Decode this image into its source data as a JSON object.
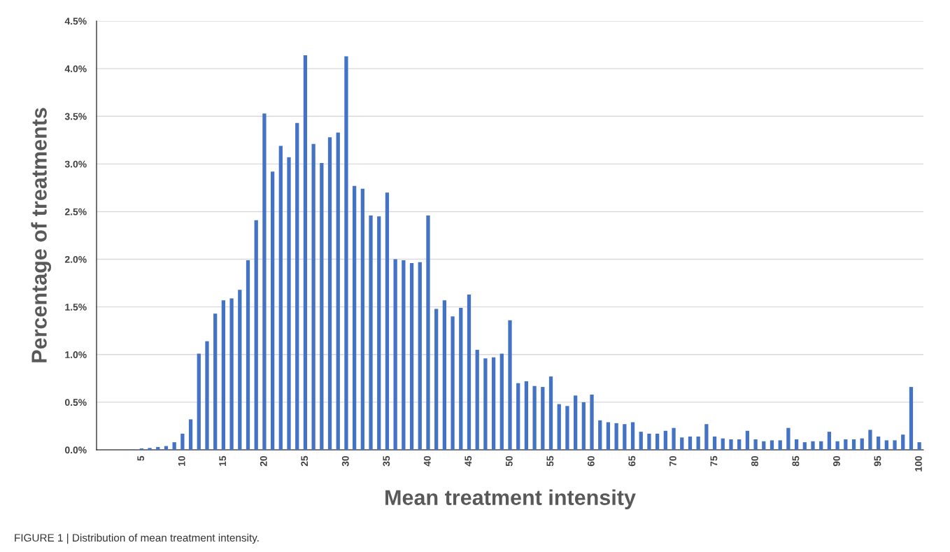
{
  "chart_data": {
    "type": "bar",
    "xlabel": "Mean treatment intensity",
    "ylabel": "Percentage of treatments",
    "categories": [
      null,
      null,
      null,
      null,
      null,
      "5",
      null,
      null,
      null,
      null,
      "10",
      null,
      null,
      null,
      null,
      "15",
      null,
      null,
      null,
      null,
      "20",
      null,
      null,
      null,
      null,
      "25",
      null,
      null,
      null,
      null,
      "30",
      null,
      null,
      null,
      null,
      "35",
      null,
      null,
      null,
      null,
      "40",
      null,
      null,
      null,
      null,
      "45",
      null,
      null,
      null,
      null,
      "50",
      null,
      null,
      null,
      null,
      "55",
      null,
      null,
      null,
      null,
      "60",
      null,
      null,
      null,
      null,
      "65",
      null,
      null,
      null,
      null,
      "70",
      null,
      null,
      null,
      null,
      "75",
      null,
      null,
      null,
      null,
      "80",
      null,
      null,
      null,
      null,
      "85",
      null,
      null,
      null,
      null,
      "90",
      null,
      null,
      null,
      null,
      "95",
      null,
      null,
      null,
      null,
      "100"
    ],
    "values": [
      0,
      0,
      0,
      0,
      0.005,
      0.015,
      0.02,
      0.03,
      0.04,
      0.08,
      0.17,
      0.32,
      1.01,
      1.14,
      1.43,
      1.57,
      1.59,
      1.68,
      1.99,
      2.41,
      3.53,
      2.92,
      3.19,
      3.07,
      3.43,
      4.14,
      3.21,
      3.01,
      3.28,
      3.33,
      4.13,
      2.77,
      2.74,
      2.46,
      2.45,
      2.7,
      2.0,
      1.99,
      1.96,
      1.97,
      2.46,
      1.48,
      1.57,
      1.4,
      1.49,
      1.63,
      1.05,
      0.96,
      0.97,
      1.01,
      1.36,
      0.7,
      0.72,
      0.67,
      0.66,
      0.77,
      0.48,
      0.46,
      0.57,
      0.5,
      0.58,
      0.31,
      0.29,
      0.28,
      0.27,
      0.29,
      0.19,
      0.17,
      0.17,
      0.2,
      0.23,
      0.13,
      0.14,
      0.14,
      0.27,
      0.14,
      0.12,
      0.11,
      0.11,
      0.2,
      0.11,
      0.09,
      0.1,
      0.1,
      0.23,
      0.11,
      0.08,
      0.09,
      0.09,
      0.19,
      0.09,
      0.11,
      0.11,
      0.12,
      0.21,
      0.14,
      0.1,
      0.1,
      0.16,
      0.66,
      0.08
    ],
    "color": "#4472c4",
    "ylim": [
      0,
      4.5
    ],
    "yticks": [
      {
        "value": 0,
        "label": "0.0%"
      },
      {
        "value": 0.5,
        "label": "0.5%"
      },
      {
        "value": 1,
        "label": "1.0%"
      },
      {
        "value": 1.5,
        "label": "1.5%"
      },
      {
        "value": 2,
        "label": "2.0%"
      },
      {
        "value": 2.5,
        "label": "2.5%"
      },
      {
        "value": 3,
        "label": "3.0%"
      },
      {
        "value": 3.5,
        "label": "3.5%"
      },
      {
        "value": 4,
        "label": "4.0%"
      },
      {
        "value": 4.5,
        "label": "4.5%"
      }
    ],
    "grid": "y",
    "annotations": [
      "FIGURE 1 | Distribution of mean treatment intensity."
    ]
  }
}
